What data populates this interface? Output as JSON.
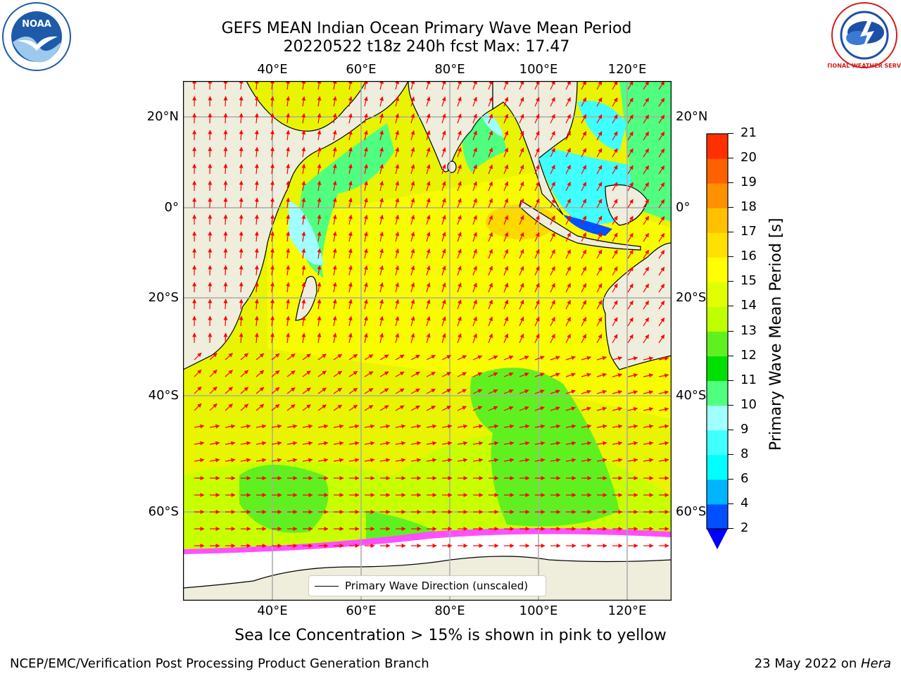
{
  "title": {
    "line1": "GEFS MEAN Indian Ocean Primary Wave Mean Period",
    "line2": "20220522 t18z 240h fcst   Max: 17.47"
  },
  "logos": {
    "noaa_text": "NOAA",
    "nws_text": "NATIONAL WEATHER SERVICE"
  },
  "map": {
    "lon_labels": [
      "40°E",
      "60°E",
      "80°E",
      "100°E",
      "120°E"
    ],
    "lat_labels": [
      "20°N",
      "0°",
      "20°S",
      "40°S",
      "60°S"
    ],
    "legend_label": "Primary Wave Direction (unscaled)",
    "arrow_color": "#ff0000",
    "land_color": "#efeddc",
    "ice_color": "#ffffff"
  },
  "colorbar": {
    "label": "Primary Wave Mean Period [s]",
    "ticks": [
      "2",
      "4",
      "6",
      "8",
      "9",
      "10",
      "11",
      "12",
      "13",
      "14",
      "15",
      "16",
      "17",
      "18",
      "19",
      "20",
      "21"
    ],
    "colors": [
      "#0050ff",
      "#00b4ff",
      "#00ffff",
      "#40ffff",
      "#a0ffff",
      "#50ff80",
      "#00e000",
      "#60f020",
      "#c0ff00",
      "#e0ff00",
      "#ffff00",
      "#ffe000",
      "#ffc000",
      "#ff9000",
      "#ff6000",
      "#ff3000",
      "#ff0000"
    ],
    "under_color": "#0000ff"
  },
  "caption": "Sea Ice Concentration > 15% is shown in pink to yellow",
  "footer": {
    "left": "NCEP/EMC/Verification Post Processing Product Generation Branch",
    "right_prefix": "23 May 2022 on ",
    "right_host": "Hera"
  }
}
